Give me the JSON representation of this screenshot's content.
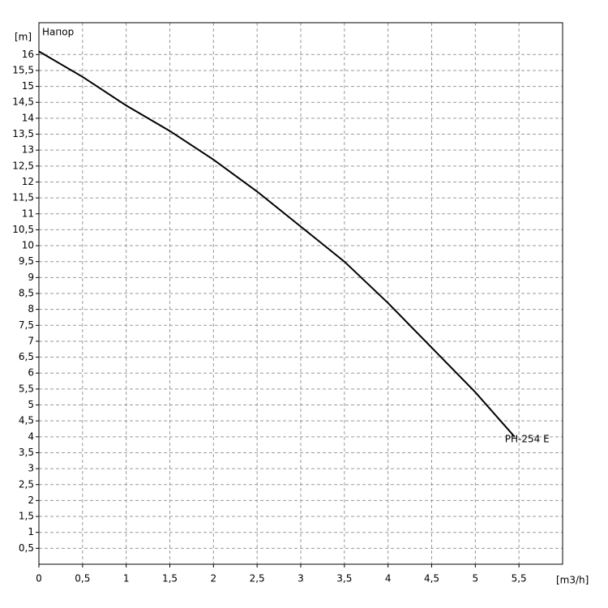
{
  "chart_data": {
    "type": "line",
    "y_label": "[m]",
    "x_label": "[m3/h]",
    "annotation": "Напор",
    "x": [
      0,
      0.5,
      1,
      1.5,
      2,
      2.5,
      3,
      3.5,
      4,
      4.5,
      5,
      5.45
    ],
    "series": [
      {
        "name": "PH-254 E",
        "color": "#000000",
        "values": [
          16.1,
          15.3,
          14.4,
          13.6,
          12.7,
          11.7,
          10.6,
          9.5,
          8.2,
          6.8,
          5.4,
          4.0
        ]
      }
    ],
    "xlim": [
      0,
      6
    ],
    "ylim": [
      0,
      17
    ],
    "xticks": [
      0,
      {
        "value": 0.5,
        "label": "0,5"
      },
      1,
      {
        "value": 1.5,
        "label": "1,5"
      },
      2,
      {
        "value": 2.5,
        "label": "2,5"
      },
      3,
      {
        "value": 3.5,
        "label": "3,5"
      },
      4,
      {
        "value": 4.5,
        "label": "4,5"
      },
      5,
      {
        "value": 5.5,
        "label": "5,5"
      }
    ],
    "yticks": [
      {
        "value": 0.5,
        "label": "0,5"
      },
      1,
      {
        "value": 1.5,
        "label": "1,5"
      },
      2,
      {
        "value": 2.5,
        "label": "2,5"
      },
      3,
      {
        "value": 3.5,
        "label": "3,5"
      },
      4,
      {
        "value": 4.5,
        "label": "4,5"
      },
      5,
      {
        "value": 5.5,
        "label": "5,5"
      },
      6,
      {
        "value": 6.5,
        "label": "6,5"
      },
      7,
      {
        "value": 7.5,
        "label": "7,5"
      },
      8,
      {
        "value": 8.5,
        "label": "8,5"
      },
      9,
      {
        "value": 9.5,
        "label": "9,5"
      },
      10,
      {
        "value": 10.5,
        "label": "10,5"
      },
      11,
      {
        "value": 11.5,
        "label": "11,5"
      },
      12,
      {
        "value": 12.5,
        "label": "12,5"
      },
      13,
      {
        "value": 13.5,
        "label": "13,5"
      },
      14,
      {
        "value": 14.5,
        "label": "14,5"
      },
      15,
      {
        "value": 15.5,
        "label": "15,5"
      },
      16
    ],
    "grid": true
  }
}
